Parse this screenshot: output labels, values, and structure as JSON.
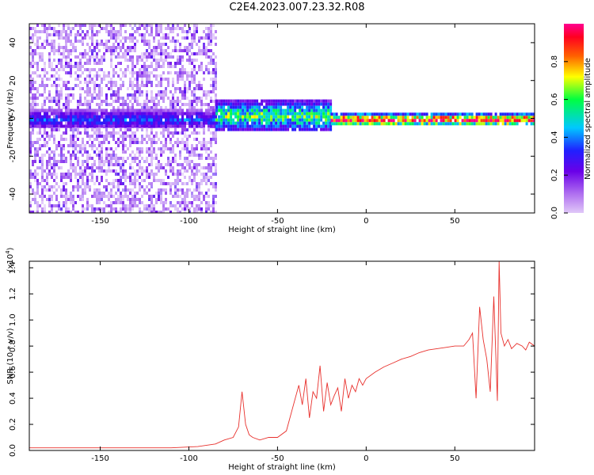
{
  "title": "C2E4.2023.007.23.32.R08",
  "chart_data": [
    {
      "type": "heatmap",
      "title": "",
      "xlabel": "Height of straight line (km)",
      "ylabel": "Frequency (Hz)",
      "xlim": [
        -190,
        95
      ],
      "ylim": [
        -50,
        50
      ],
      "xticks": [
        -150,
        -100,
        -50,
        0,
        50
      ],
      "yticks": [
        -40,
        -20,
        0,
        20,
        40
      ],
      "colorbar": {
        "label": "Normalized spectral amplitude",
        "range": [
          0.0,
          1.0
        ],
        "ticks": [
          0.0,
          0.2,
          0.4,
          0.6,
          0.8
        ],
        "colormap": [
          "#e0c8f8",
          "#b070f0",
          "#6a00e8",
          "#2020ff",
          "#00c8ff",
          "#00ff40",
          "#ffff00",
          "#ff6000",
          "#ff0020",
          "#ff0090"
        ]
      },
      "regions": [
        {
          "x_range": [
            -190,
            -85
          ],
          "frequency_spread": [
            -50,
            50
          ],
          "amplitude": 0.15,
          "description": "noise"
        },
        {
          "x_range": [
            -190,
            -85
          ],
          "frequency_spread": [
            -5,
            5
          ],
          "amplitude": 0.3
        },
        {
          "x_range": [
            -85,
            -20
          ],
          "frequency_spread": [
            -6,
            10
          ],
          "amplitude": 0.5
        },
        {
          "x_range": [
            -20,
            95
          ],
          "frequency_spread": [
            -3,
            3
          ],
          "amplitude": 0.8
        }
      ]
    },
    {
      "type": "line",
      "title": "",
      "xlabel": "Height of straight line (km)",
      "ylabel": "SNR (10 * v/v)",
      "y_multiplier": "(x10^4)",
      "xlim": [
        -190,
        95
      ],
      "ylim": [
        0,
        1.45
      ],
      "xticks": [
        -150,
        -100,
        -50,
        0,
        50
      ],
      "yticks": [
        0.0,
        0.2,
        0.4,
        0.6,
        0.8,
        1.0,
        1.2,
        1.4
      ],
      "color": "#e8302c",
      "series": [
        {
          "x": [
            -190,
            -170,
            -150,
            -130,
            -110,
            -95,
            -85,
            -80,
            -75,
            -72,
            -70,
            -68,
            -66,
            -64,
            -60,
            -55,
            -50,
            -45,
            -42,
            -40,
            -38,
            -36,
            -34,
            -32,
            -30,
            -28,
            -26,
            -24,
            -22,
            -20,
            -18,
            -16,
            -14,
            -12,
            -10,
            -8,
            -6,
            -4,
            -2,
            0,
            5,
            10,
            15,
            20,
            25,
            30,
            35,
            40,
            45,
            50,
            55,
            58,
            60,
            62,
            64,
            66,
            68,
            70,
            72,
            74,
            75,
            76,
            78,
            80,
            82,
            85,
            88,
            90,
            92,
            95
          ],
          "y": [
            0.02,
            0.02,
            0.02,
            0.02,
            0.02,
            0.03,
            0.05,
            0.08,
            0.1,
            0.18,
            0.45,
            0.2,
            0.12,
            0.1,
            0.08,
            0.1,
            0.1,
            0.15,
            0.3,
            0.4,
            0.5,
            0.35,
            0.55,
            0.25,
            0.45,
            0.4,
            0.65,
            0.3,
            0.52,
            0.35,
            0.42,
            0.48,
            0.3,
            0.55,
            0.4,
            0.5,
            0.45,
            0.55,
            0.5,
            0.55,
            0.6,
            0.64,
            0.67,
            0.7,
            0.72,
            0.75,
            0.77,
            0.78,
            0.79,
            0.8,
            0.8,
            0.85,
            0.9,
            0.4,
            1.1,
            0.85,
            0.7,
            0.45,
            1.18,
            0.38,
            1.45,
            0.9,
            0.8,
            0.85,
            0.78,
            0.82,
            0.8,
            0.77,
            0.83,
            0.8
          ]
        }
      ]
    }
  ]
}
